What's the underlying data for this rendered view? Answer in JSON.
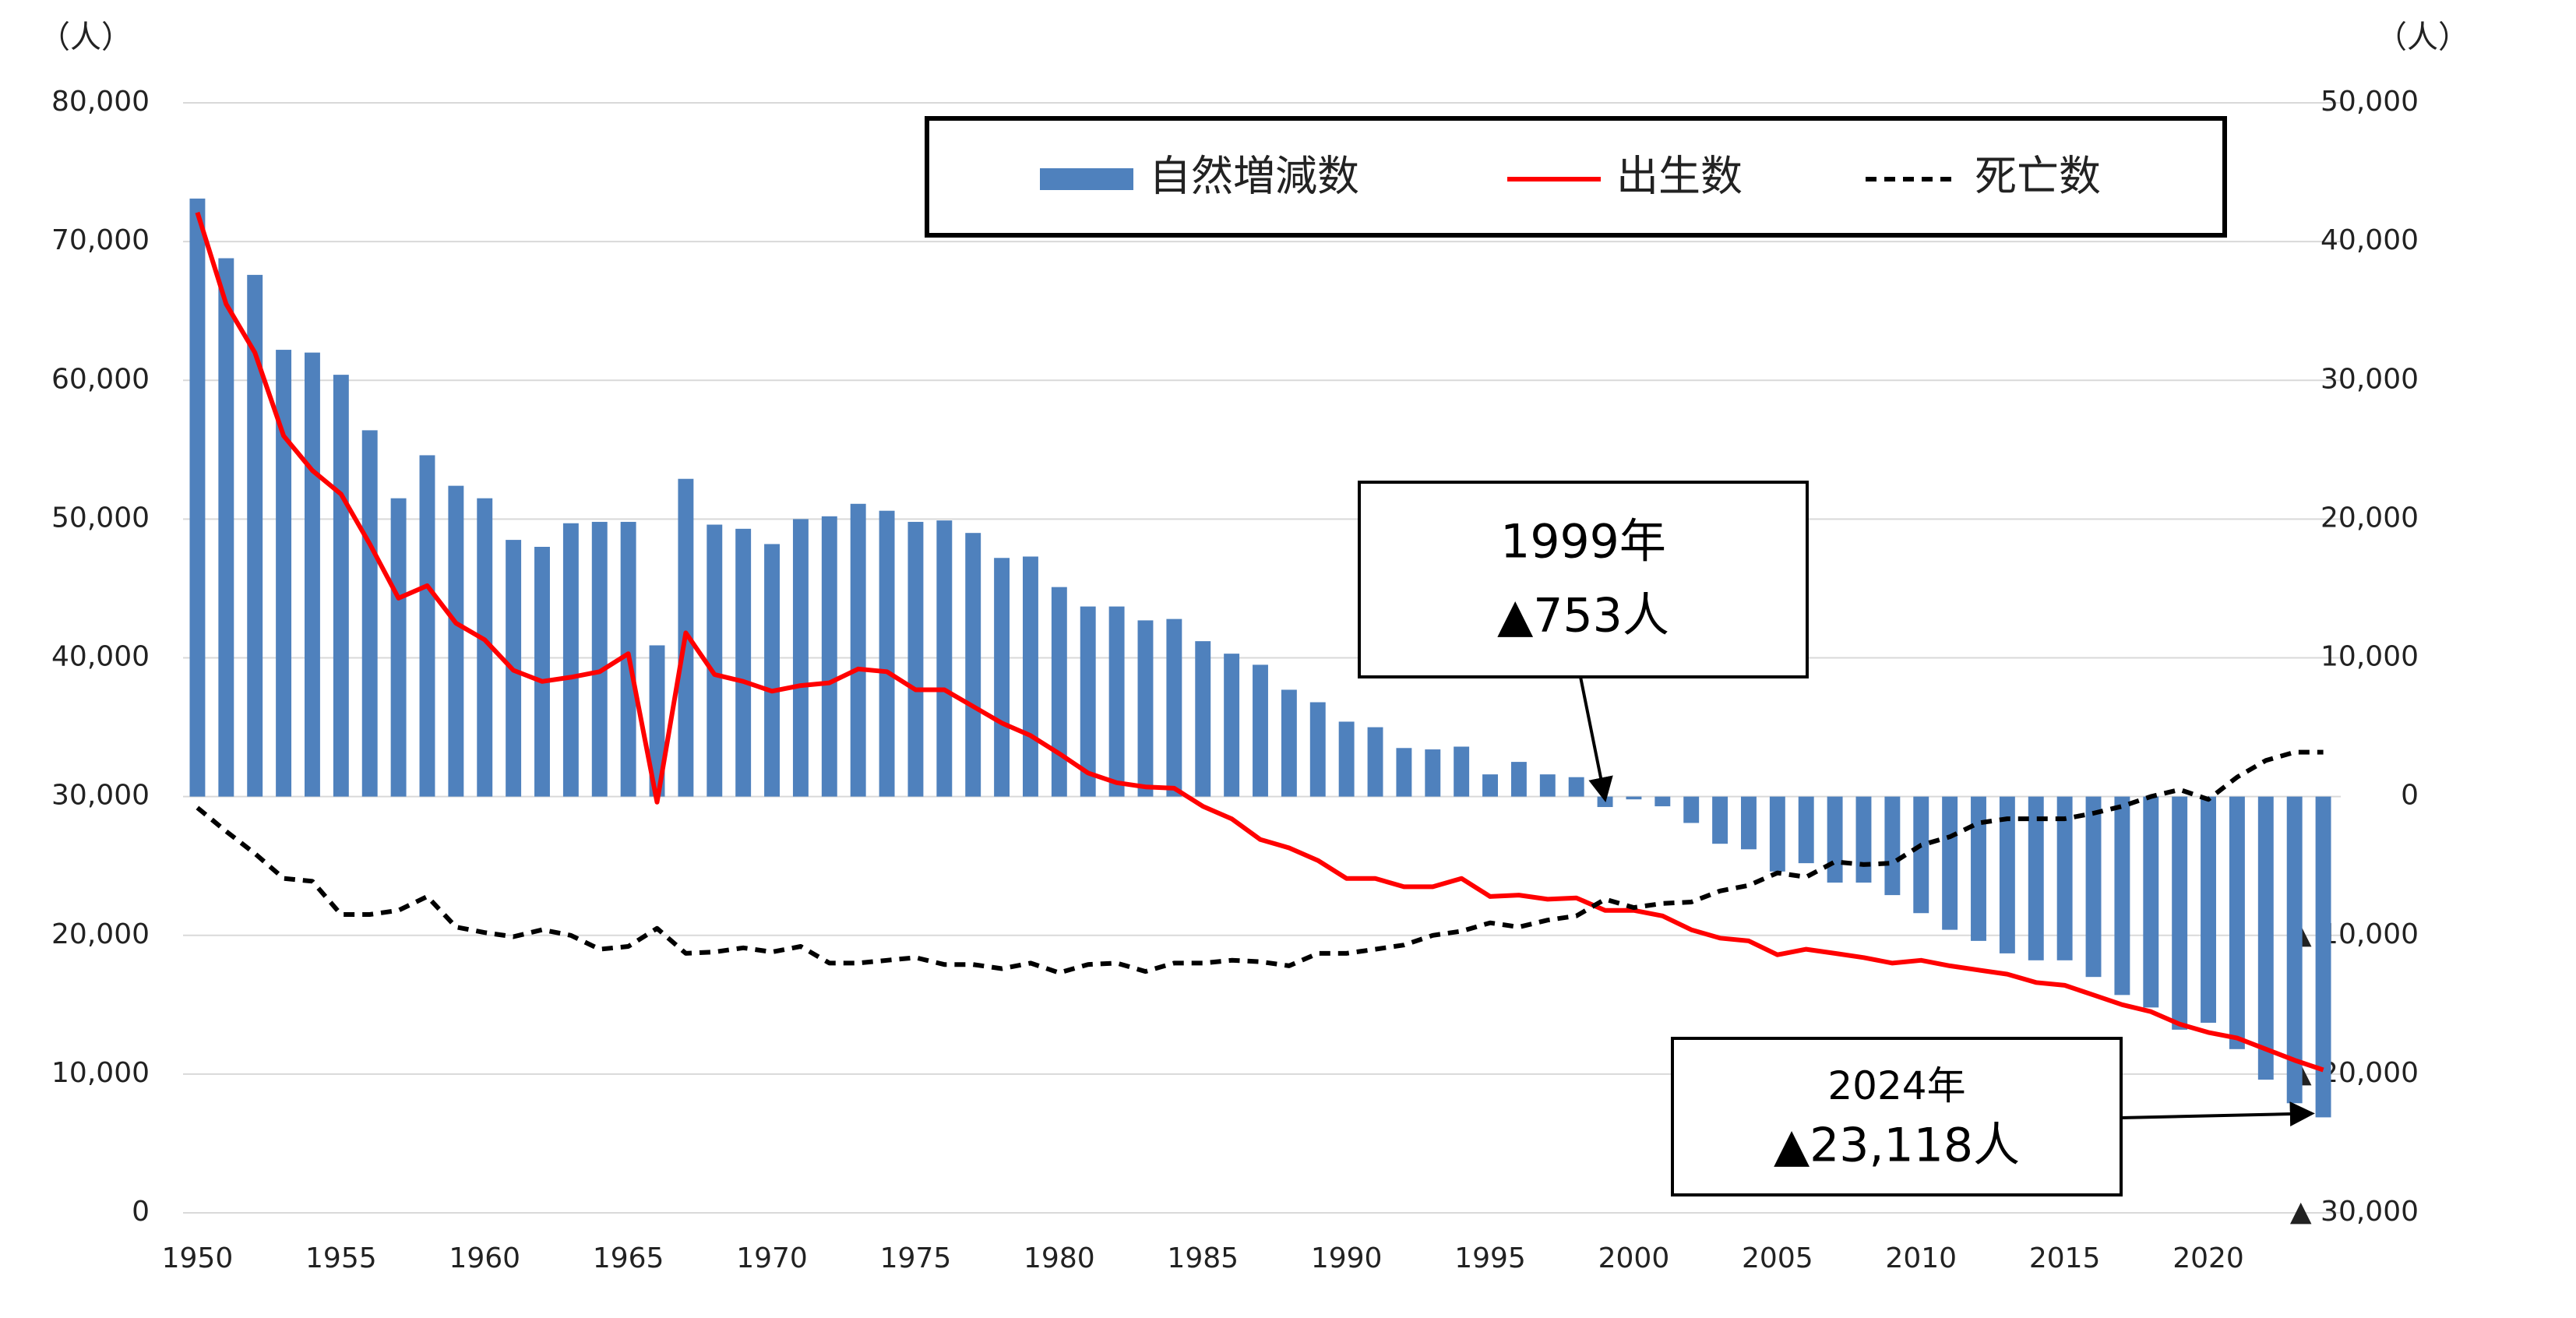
{
  "chart_data": {
    "type": "combo",
    "y_unit_label": "（人）",
    "y2_unit_label": "（人）",
    "x": [
      1950,
      1951,
      1952,
      1953,
      1954,
      1955,
      1956,
      1957,
      1958,
      1959,
      1960,
      1961,
      1962,
      1963,
      1964,
      1965,
      1966,
      1967,
      1968,
      1969,
      1970,
      1971,
      1972,
      1973,
      1974,
      1975,
      1976,
      1977,
      1978,
      1979,
      1980,
      1981,
      1982,
      1983,
      1984,
      1985,
      1986,
      1987,
      1988,
      1989,
      1990,
      1991,
      1992,
      1993,
      1994,
      1995,
      1996,
      1997,
      1998,
      1999,
      2000,
      2001,
      2002,
      2003,
      2004,
      2005,
      2006,
      2007,
      2008,
      2009,
      2010,
      2011,
      2012,
      2013,
      2014,
      2015,
      2016,
      2017,
      2018,
      2019,
      2020,
      2021,
      2022,
      2023,
      2024
    ],
    "xticks": [
      1950,
      1955,
      1960,
      1965,
      1970,
      1975,
      1980,
      1985,
      1990,
      1995,
      2000,
      2005,
      2010,
      2015,
      2020
    ],
    "xlim": [
      1949.5,
      2024.5
    ],
    "ylim": [
      0,
      80000
    ],
    "yticks": [
      {
        "value": 0,
        "label": "0"
      },
      {
        "value": 10000,
        "label": "10,000"
      },
      {
        "value": 20000,
        "label": "20,000"
      },
      {
        "value": 30000,
        "label": "30,000"
      },
      {
        "value": 40000,
        "label": "40,000"
      },
      {
        "value": 50000,
        "label": "50,000"
      },
      {
        "value": 60000,
        "label": "60,000"
      },
      {
        "value": 70000,
        "label": "70,000"
      },
      {
        "value": 80000,
        "label": "80,000"
      }
    ],
    "y2lim": [
      -30000,
      50000
    ],
    "y2ticks": [
      {
        "value": -30000,
        "label": "▲ 30,000"
      },
      {
        "value": -20000,
        "label": "▲ 20,000"
      },
      {
        "value": -10000,
        "label": "▲ 10,000"
      },
      0,
      {
        "value": 10000,
        "label": "10,000"
      },
      {
        "value": 20000,
        "label": "20,000"
      },
      {
        "value": 30000,
        "label": "30,000"
      },
      {
        "value": 40000,
        "label": "40,000"
      },
      {
        "value": 50000,
        "label": "50,000"
      }
    ],
    "grid": true,
    "legend": "top",
    "series": [
      {
        "name": "自然増減数",
        "type": "bar",
        "axis": "y2",
        "color": "#4f81bd",
        "values": [
          43100,
          38800,
          37600,
          32200,
          32000,
          30400,
          26400,
          21500,
          24600,
          22400,
          21500,
          18500,
          18000,
          19700,
          19800,
          19800,
          10900,
          22900,
          19600,
          19300,
          18200,
          20000,
          20200,
          21100,
          20600,
          19800,
          19900,
          19000,
          17200,
          17300,
          15100,
          13700,
          13700,
          12700,
          12800,
          11200,
          10300,
          9500,
          7700,
          6800,
          5400,
          5000,
          3500,
          3400,
          3600,
          1600,
          2500,
          1600,
          1400,
          -753,
          -200,
          -700,
          -1900,
          -3400,
          -3800,
          -5400,
          -4800,
          -6200,
          -6200,
          -7100,
          -8400,
          -9600,
          -10400,
          -11300,
          -11800,
          -11800,
          -13000,
          -14300,
          -15200,
          -16800,
          -16300,
          -18200,
          -20400,
          -22100,
          -23118
        ]
      },
      {
        "name": "出生数",
        "type": "line",
        "color": "#ff0000",
        "dashed": false,
        "values": [
          72100,
          65500,
          62000,
          56000,
          53500,
          51800,
          48200,
          44300,
          45200,
          42500,
          41300,
          39100,
          38300,
          38600,
          39000,
          40300,
          29600,
          41800,
          38800,
          38300,
          37600,
          38000,
          38200,
          39200,
          39000,
          37700,
          37700,
          36500,
          35300,
          34400,
          33100,
          31700,
          31000,
          30700,
          30600,
          29300,
          28400,
          26900,
          26300,
          25400,
          24100,
          24100,
          23500,
          23500,
          24100,
          22800,
          22900,
          22600,
          22700,
          21800,
          21800,
          21400,
          20400,
          19800,
          19600,
          18600,
          19000,
          18700,
          18400,
          18000,
          18200,
          17800,
          17500,
          17200,
          16600,
          16400,
          15700,
          15000,
          14500,
          13600,
          13000,
          12600,
          11800,
          11000,
          10300
        ]
      },
      {
        "name": "死亡数",
        "type": "line",
        "color": "#000000",
        "dashed": true,
        "values": [
          29200,
          27500,
          25900,
          24100,
          23900,
          21500,
          21500,
          21800,
          22800,
          20600,
          20200,
          19900,
          20400,
          20000,
          19000,
          19200,
          20500,
          18700,
          18800,
          19100,
          18800,
          19200,
          18000,
          18000,
          18200,
          18400,
          17900,
          17900,
          17600,
          18000,
          17300,
          17900,
          18000,
          17400,
          18000,
          18000,
          18200,
          18100,
          17800,
          18700,
          18700,
          19000,
          19300,
          20000,
          20300,
          20900,
          20600,
          21100,
          21400,
          22600,
          22000,
          22300,
          22400,
          23200,
          23600,
          24500,
          24200,
          25300,
          25100,
          25200,
          26500,
          27100,
          28100,
          28400,
          28400,
          28400,
          28800,
          29300,
          30000,
          30500,
          29800,
          31400,
          32600,
          33200,
          33200
        ]
      }
    ],
    "annotations": [
      {
        "year": 1999,
        "lines": [
          "1999年",
          "▲753人"
        ]
      },
      {
        "year": 2024,
        "lines": [
          "2024年",
          "▲23,118人"
        ]
      }
    ]
  }
}
